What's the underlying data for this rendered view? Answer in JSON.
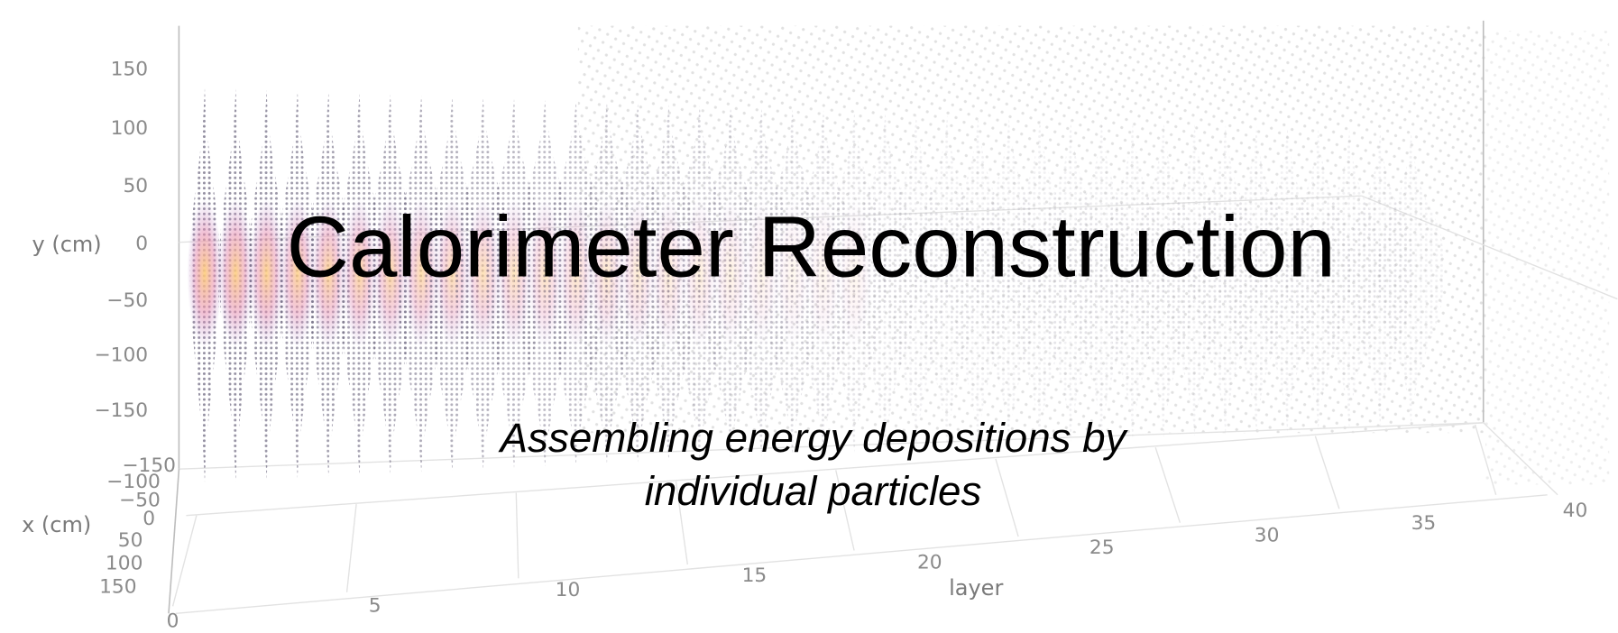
{
  "slide": {
    "title": "Calorimeter Reconstruction",
    "subtitle_lines": [
      "Assembling energy depositions by",
      "individual particles"
    ]
  },
  "plot": {
    "y_axis": {
      "label": "y (cm)",
      "ticks": [
        "150",
        "100",
        "50",
        "0",
        "−50",
        "−100",
        "−150"
      ]
    },
    "x_axis": {
      "label": "x (cm)",
      "ticks": [
        "−150",
        "−100",
        "−50",
        "0",
        "50",
        "100",
        "150"
      ]
    },
    "layer_axis": {
      "label": "layer",
      "ticks": [
        "0",
        "5",
        "10",
        "15",
        "20",
        "25",
        "30",
        "35",
        "40"
      ]
    }
  }
}
